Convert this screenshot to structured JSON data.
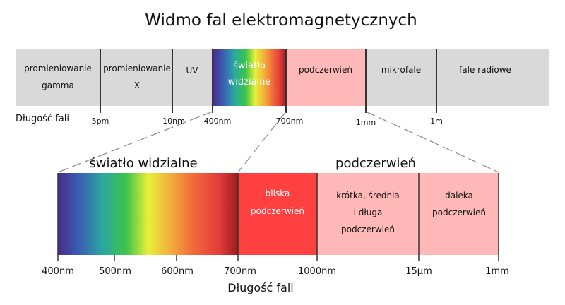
{
  "title": "Widmo fal elektromagnetycznych",
  "top_bar": {
    "segments": [
      {
        "lines": [
          "promieniowanie",
          "gamma"
        ]
      },
      {
        "lines": [
          "promieniowanie",
          "X"
        ]
      },
      {
        "lines": [
          "UV"
        ]
      },
      {
        "lines": [
          "światło",
          "widzialne"
        ]
      },
      {
        "lines": [
          "podczerwień"
        ]
      },
      {
        "lines": [
          "mikrofale"
        ]
      },
      {
        "lines": [
          "fale radiowe"
        ]
      }
    ],
    "axis_title": "Długość fali",
    "ticks": [
      "5pm",
      "10nm",
      "400nm",
      "700nm",
      "1mm",
      "1m"
    ]
  },
  "bottom_bar": {
    "visible_heading": "światło widzialne",
    "ir_heading": "podczerwień",
    "segments": [
      {
        "lines": [
          "bliska",
          "podczerwień"
        ]
      },
      {
        "lines": [
          "krótka, średnia",
          "i długa",
          "podczerwień"
        ]
      },
      {
        "lines": [
          "daleka",
          "podczerwień"
        ]
      }
    ],
    "ticks": [
      "400nm",
      "500nm",
      "600nm",
      "700nm",
      "1000nm",
      "15µm",
      "1mm"
    ],
    "axis_title": "Długość fali"
  },
  "colors": {
    "grey_band": "#d9d9d9",
    "infrared_light": "#ffb8b8",
    "near_infrared": "#ff4040",
    "divider": "#333333"
  }
}
